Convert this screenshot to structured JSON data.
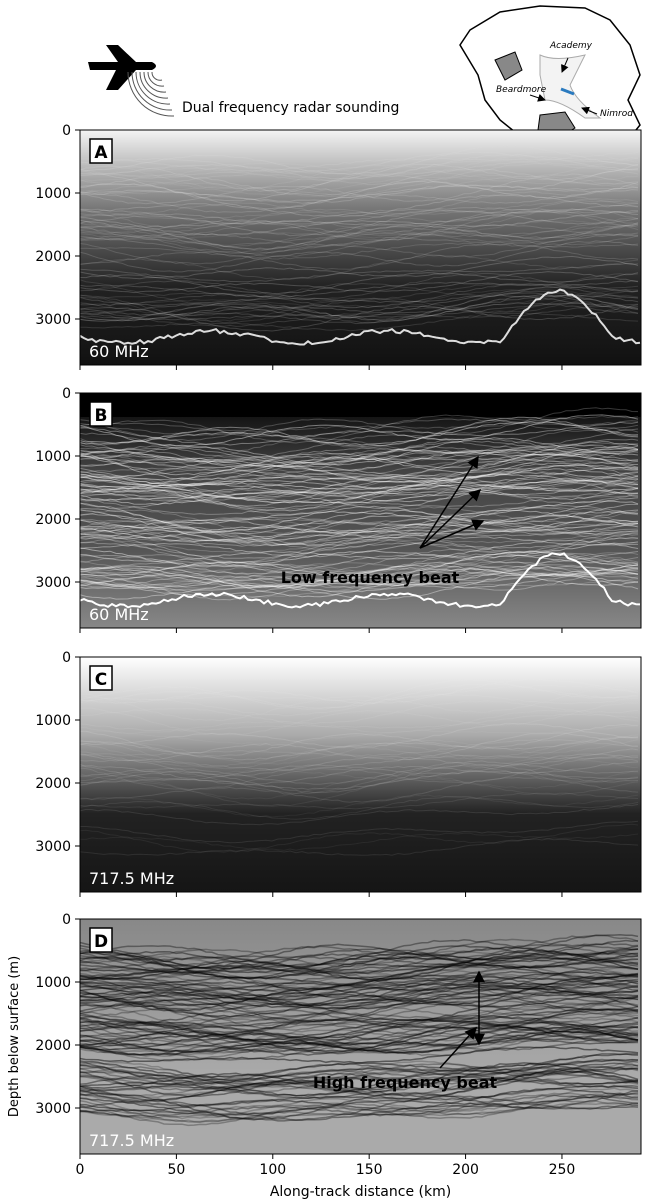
{
  "header": {
    "title": "Dual frequency radar sounding"
  },
  "map": {
    "labels": [
      "Academy",
      "Beardmore",
      "Nimrod"
    ]
  },
  "chart_data": [
    {
      "type": "radargram",
      "panel_label": "A",
      "annotation": "60 MHz",
      "ylim": [
        0,
        3730
      ],
      "yticks": [
        0,
        1000,
        2000,
        3000
      ]
    },
    {
      "type": "radargram",
      "panel_label": "B",
      "annotation": "60 MHz",
      "ylim": [
        0,
        3730
      ],
      "yticks": [
        0,
        1000,
        2000,
        3000
      ],
      "callout": "Low frequency beat"
    },
    {
      "type": "radargram",
      "panel_label": "C",
      "annotation": "717.5 MHz",
      "ylim": [
        0,
        3730
      ],
      "yticks": [
        0,
        1000,
        2000,
        3000
      ]
    },
    {
      "type": "radargram",
      "panel_label": "D",
      "annotation": "717.5 MHz",
      "ylim": [
        0,
        3730
      ],
      "yticks": [
        0,
        1000,
        2000,
        3000
      ],
      "callout": "High frequency beat",
      "xlim": [
        0,
        291
      ],
      "xticks": [
        0,
        50,
        100,
        150,
        200,
        250
      ],
      "xlabel": "Along-track distance (km)",
      "ylabel": "Depth below surface (m)"
    }
  ]
}
